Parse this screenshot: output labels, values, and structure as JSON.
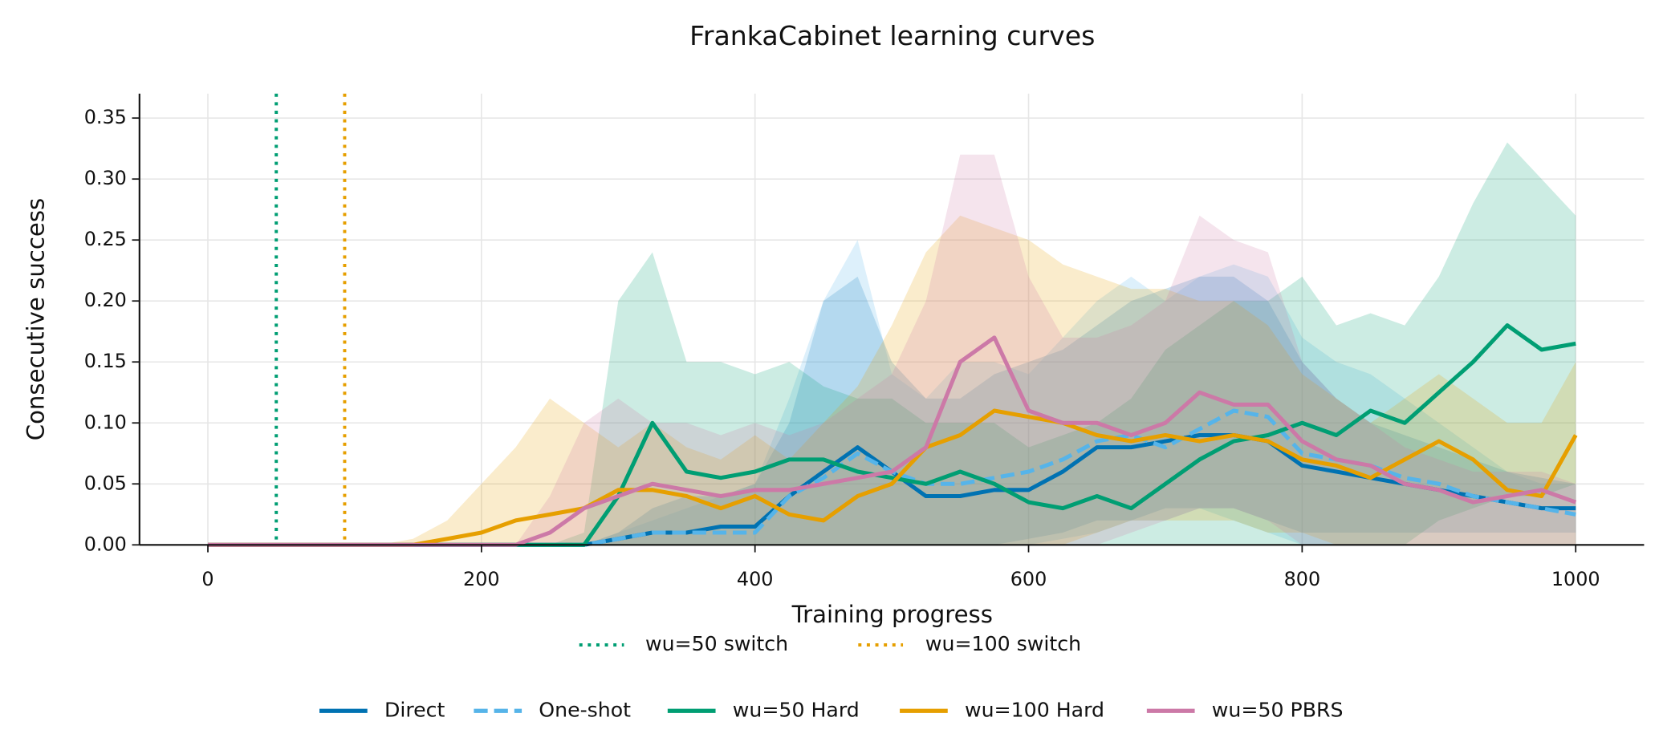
{
  "chart_data": {
    "type": "line",
    "title": "FrankaCabinet learning curves",
    "xlabel": "Training progress",
    "ylabel": "Consecutive success",
    "x": [
      0,
      25,
      50,
      75,
      100,
      125,
      150,
      175,
      200,
      225,
      250,
      275,
      300,
      325,
      350,
      375,
      400,
      425,
      450,
      475,
      500,
      525,
      550,
      575,
      600,
      625,
      650,
      675,
      700,
      725,
      750,
      775,
      800,
      825,
      850,
      875,
      900,
      925,
      950,
      975,
      1000
    ],
    "xlim": [
      -50,
      1050
    ],
    "ylim": [
      0,
      0.37
    ],
    "xticks": [
      0,
      200,
      400,
      600,
      800,
      1000
    ],
    "yticks": [
      {
        "value": 0,
        "label": "0.00"
      },
      0.05,
      {
        "value": 0.1,
        "label": "0.10"
      },
      0.15,
      {
        "value": 0.2,
        "label": "0.20"
      },
      0.25,
      {
        "value": 0.3,
        "label": "0.30"
      },
      0.35
    ],
    "grid": true,
    "vlines": [
      {
        "x": 50,
        "name": "wu=50 switch",
        "color": "#009e73"
      },
      {
        "x": 100,
        "name": "wu=100 switch",
        "color": "#e69f00"
      }
    ],
    "series": [
      {
        "name": "Direct",
        "color": "#0072b2",
        "dashed": false,
        "values": [
          0,
          0,
          0,
          0,
          0,
          0,
          0,
          0,
          0,
          0,
          0,
          0,
          0.005,
          0.01,
          0.01,
          0.015,
          0.015,
          0.04,
          0.06,
          0.08,
          0.06,
          0.04,
          0.04,
          0.045,
          0.045,
          0.06,
          0.08,
          0.08,
          0.085,
          0.09,
          0.09,
          0.085,
          0.065,
          0.06,
          0.055,
          0.05,
          0.045,
          0.04,
          0.035,
          0.03,
          0.03
        ],
        "upper": [
          0,
          0,
          0,
          0,
          0,
          0,
          0,
          0,
          0,
          0,
          0,
          0,
          0.01,
          0.03,
          0.04,
          0.04,
          0.05,
          0.1,
          0.2,
          0.22,
          0.15,
          0.12,
          0.12,
          0.14,
          0.15,
          0.16,
          0.18,
          0.2,
          0.21,
          0.22,
          0.22,
          0.2,
          0.15,
          0.12,
          0.1,
          0.09,
          0.08,
          0.07,
          0.06,
          0.055,
          0.05
        ],
        "lower": [
          0,
          0,
          0,
          0,
          0,
          0,
          0,
          0,
          0,
          0,
          0,
          0,
          0,
          0,
          0,
          0,
          0,
          0,
          0,
          0,
          0,
          0,
          0,
          0,
          0.005,
          0.01,
          0.02,
          0.02,
          0.03,
          0.03,
          0.03,
          0.02,
          0.01,
          0.01,
          0.01,
          0.01,
          0.01,
          0.01,
          0.01,
          0.01,
          0.01
        ]
      },
      {
        "name": "One-shot",
        "color": "#56b4e9",
        "dashed": true,
        "values": [
          0,
          0,
          0,
          0,
          0,
          0,
          0,
          0,
          0,
          0,
          0,
          0,
          0.005,
          0.01,
          0.01,
          0.01,
          0.01,
          0.04,
          0.055,
          0.075,
          0.06,
          0.05,
          0.05,
          0.055,
          0.06,
          0.07,
          0.085,
          0.09,
          0.08,
          0.095,
          0.11,
          0.105,
          0.075,
          0.07,
          0.065,
          0.055,
          0.05,
          0.04,
          0.035,
          0.03,
          0.025
        ],
        "upper": [
          0,
          0,
          0,
          0,
          0,
          0,
          0,
          0,
          0,
          0,
          0,
          0,
          0.01,
          0.02,
          0.03,
          0.04,
          0.05,
          0.12,
          0.2,
          0.25,
          0.14,
          0.12,
          0.15,
          0.15,
          0.14,
          0.17,
          0.2,
          0.22,
          0.2,
          0.22,
          0.23,
          0.22,
          0.17,
          0.15,
          0.14,
          0.12,
          0.1,
          0.08,
          0.06,
          0.05,
          0.05
        ],
        "lower": [
          0,
          0,
          0,
          0,
          0,
          0,
          0,
          0,
          0,
          0,
          0,
          0,
          0,
          0,
          0,
          0,
          0,
          0,
          0,
          0,
          0,
          0,
          0,
          0,
          0,
          0.005,
          0.01,
          0.02,
          0.02,
          0.03,
          0.02,
          0.01,
          0,
          0,
          0,
          0,
          0,
          0,
          0,
          0,
          0
        ]
      },
      {
        "name": "wu=50 Hard",
        "color": "#009e73",
        "dashed": false,
        "values": [
          0,
          0,
          0,
          0,
          0,
          0,
          0,
          0,
          0,
          0,
          0,
          0,
          0.04,
          0.1,
          0.06,
          0.055,
          0.06,
          0.07,
          0.07,
          0.06,
          0.055,
          0.05,
          0.06,
          0.05,
          0.035,
          0.03,
          0.04,
          0.03,
          0.05,
          0.07,
          0.085,
          0.09,
          0.1,
          0.09,
          0.11,
          0.1,
          0.125,
          0.15,
          0.18,
          0.16,
          0.165
        ],
        "upper": [
          0,
          0,
          0,
          0,
          0,
          0,
          0,
          0,
          0,
          0,
          0,
          0.01,
          0.2,
          0.24,
          0.15,
          0.15,
          0.14,
          0.15,
          0.13,
          0.12,
          0.12,
          0.1,
          0.1,
          0.1,
          0.08,
          0.09,
          0.1,
          0.12,
          0.16,
          0.18,
          0.2,
          0.2,
          0.22,
          0.18,
          0.19,
          0.18,
          0.22,
          0.28,
          0.33,
          0.3,
          0.27
        ],
        "lower": [
          0,
          0,
          0,
          0,
          0,
          0,
          0,
          0,
          0,
          0,
          0,
          0,
          0,
          0,
          0,
          0,
          0,
          0,
          0,
          0,
          0,
          0,
          0,
          0,
          0,
          0,
          0,
          0,
          0,
          0,
          0,
          0,
          0,
          0,
          0,
          0,
          0.02,
          0.03,
          0.04,
          0.04,
          0.05
        ]
      },
      {
        "name": "wu=100 Hard",
        "color": "#e69f00",
        "dashed": false,
        "values": [
          0,
          0,
          0,
          0,
          0,
          0,
          0,
          0.005,
          0.01,
          0.02,
          0.025,
          0.03,
          0.045,
          0.045,
          0.04,
          0.03,
          0.04,
          0.025,
          0.02,
          0.04,
          0.05,
          0.08,
          0.09,
          0.11,
          0.105,
          0.1,
          0.09,
          0.085,
          0.09,
          0.085,
          0.09,
          0.085,
          0.07,
          0.065,
          0.055,
          0.07,
          0.085,
          0.07,
          0.045,
          0.04,
          0.09
        ],
        "upper": [
          0,
          0,
          0,
          0,
          0,
          0,
          0.005,
          0.02,
          0.05,
          0.08,
          0.12,
          0.1,
          0.08,
          0.1,
          0.08,
          0.07,
          0.09,
          0.07,
          0.1,
          0.13,
          0.18,
          0.24,
          0.27,
          0.26,
          0.25,
          0.23,
          0.22,
          0.21,
          0.21,
          0.2,
          0.2,
          0.18,
          0.14,
          0.12,
          0.1,
          0.12,
          0.14,
          0.12,
          0.1,
          0.1,
          0.15
        ],
        "lower": [
          0,
          0,
          0,
          0,
          0,
          0,
          0,
          0,
          0,
          0,
          0,
          0,
          0,
          0,
          0,
          0,
          0,
          0,
          0,
          0,
          0,
          0,
          0,
          0,
          0,
          0,
          0.01,
          0.02,
          0.02,
          0.02,
          0.02,
          0.01,
          0.01,
          0,
          0,
          0,
          0,
          0,
          0,
          0,
          0
        ]
      },
      {
        "name": "wu=50 PBRS",
        "color": "#cc79a7",
        "dashed": false,
        "values": [
          0,
          0,
          0,
          0,
          0,
          0,
          0,
          0,
          0,
          0,
          0.01,
          0.03,
          0.04,
          0.05,
          0.045,
          0.04,
          0.045,
          0.045,
          0.05,
          0.055,
          0.06,
          0.08,
          0.15,
          0.17,
          0.11,
          0.1,
          0.1,
          0.09,
          0.1,
          0.125,
          0.115,
          0.115,
          0.085,
          0.07,
          0.065,
          0.05,
          0.045,
          0.035,
          0.04,
          0.045,
          0.035
        ],
        "upper": [
          0,
          0,
          0,
          0,
          0,
          0,
          0,
          0,
          0,
          0,
          0.04,
          0.1,
          0.12,
          0.1,
          0.1,
          0.09,
          0.1,
          0.09,
          0.1,
          0.12,
          0.14,
          0.2,
          0.32,
          0.32,
          0.22,
          0.17,
          0.17,
          0.18,
          0.2,
          0.27,
          0.25,
          0.24,
          0.15,
          0.12,
          0.1,
          0.08,
          0.07,
          0.06,
          0.06,
          0.06,
          0.05
        ],
        "lower": [
          0,
          0,
          0,
          0,
          0,
          0,
          0,
          0,
          0,
          0,
          0,
          0,
          0,
          0,
          0,
          0,
          0,
          0,
          0,
          0,
          0,
          0,
          0,
          0,
          0,
          0,
          0,
          0.01,
          0.02,
          0.03,
          0.03,
          0.02,
          0,
          0,
          0,
          0,
          0,
          0,
          0,
          0,
          0
        ]
      }
    ]
  }
}
